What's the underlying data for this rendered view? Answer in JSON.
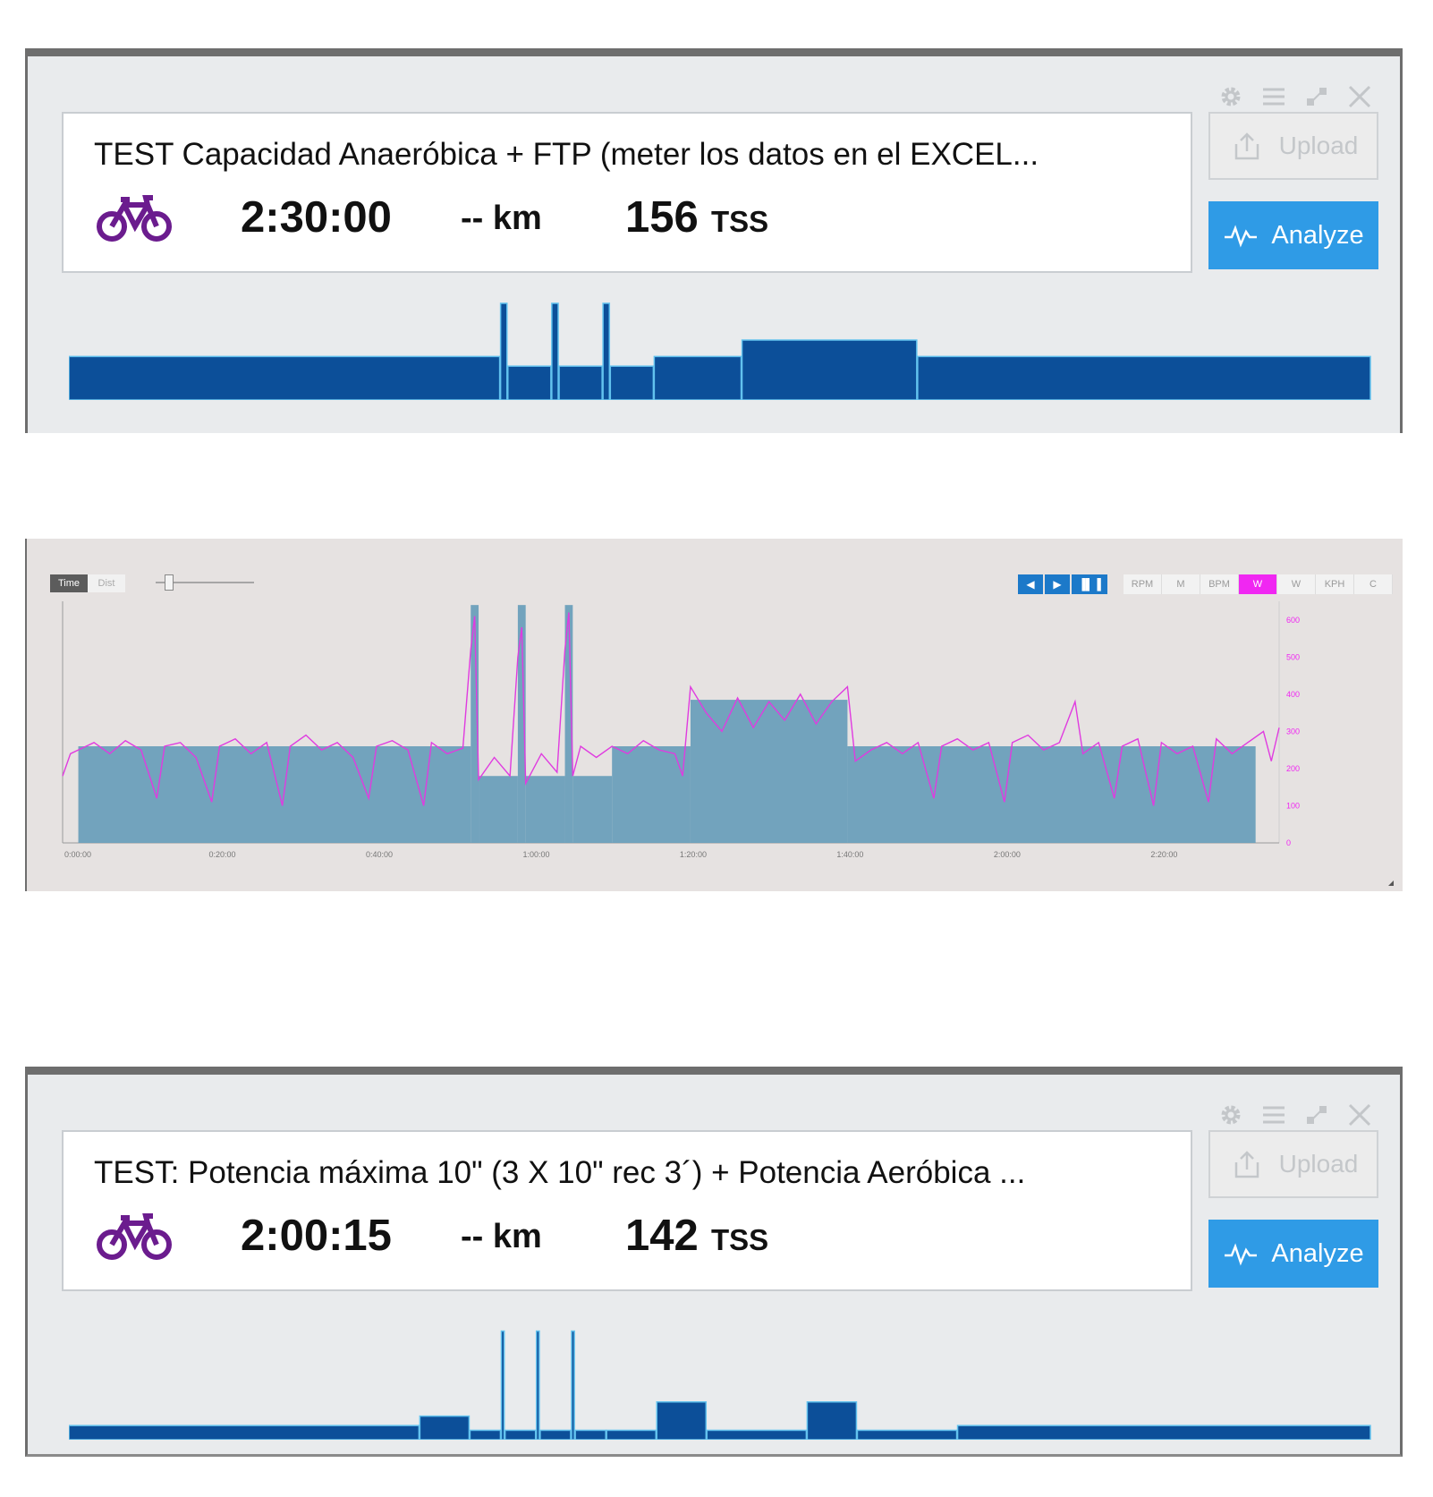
{
  "card1": {
    "title": "TEST Capacidad Anaeróbica + FTP (meter los datos en el EXCEL...",
    "sport_icon": "bike-icon",
    "duration": "2:30:00",
    "distance": "-- km",
    "tss_value": "156",
    "tss_unit": "TSS",
    "upload_label": "Upload",
    "analyze_label": "Analyze",
    "toolbar_icons": [
      "gear-icon",
      "menu-icon",
      "expand-icon",
      "close-icon"
    ],
    "profile": [
      {
        "dur": 29.5,
        "lvl": 0.45
      },
      {
        "dur": 0.5,
        "lvl": 1.0
      },
      {
        "dur": 3.0,
        "lvl": 0.35
      },
      {
        "dur": 0.5,
        "lvl": 1.0
      },
      {
        "dur": 3.0,
        "lvl": 0.35
      },
      {
        "dur": 0.5,
        "lvl": 1.0
      },
      {
        "dur": 3.0,
        "lvl": 0.35
      },
      {
        "dur": 6.0,
        "lvl": 0.45
      },
      {
        "dur": 12.0,
        "lvl": 0.62
      },
      {
        "dur": 31.0,
        "lvl": 0.45
      }
    ]
  },
  "analysis": {
    "toggle": [
      "Time",
      "Dist"
    ],
    "nav_icons": [
      "arrow-left-icon",
      "arrow-right-icon",
      "bars-icon"
    ],
    "channels": [
      "RPM",
      "M",
      "BPM",
      "W",
      "W",
      "KPH",
      "C"
    ],
    "active_channel": 3,
    "colors": {
      "bar": "#6b9fba",
      "power": "#e03be0",
      "accent": "#f027f2",
      "nav": "#1c79c9"
    },
    "chart_data": {
      "type": "area",
      "x_unit": "elapsed time (h:mm:ss)",
      "x_ticks": [
        "0:00:00",
        "0:20:00",
        "0:40:00",
        "1:00:00",
        "1:20:00",
        "1:40:00",
        "2:00:00",
        "2:20:00"
      ],
      "y_ticks": [
        "0",
        "100",
        "200",
        "300",
        "400",
        "500",
        "600"
      ],
      "ylim": [
        0,
        650
      ],
      "xlim_min": [
        0,
        155
      ],
      "planned_intervals": [
        {
          "start_min": 2,
          "end_min": 52,
          "watts": 260
        },
        {
          "start_min": 52,
          "end_min": 53,
          "watts": 640
        },
        {
          "start_min": 53,
          "end_min": 58,
          "watts": 180
        },
        {
          "start_min": 58,
          "end_min": 59,
          "watts": 640
        },
        {
          "start_min": 59,
          "end_min": 64,
          "watts": 180
        },
        {
          "start_min": 64,
          "end_min": 65,
          "watts": 640
        },
        {
          "start_min": 65,
          "end_min": 70,
          "watts": 180
        },
        {
          "start_min": 70,
          "end_min": 80,
          "watts": 260
        },
        {
          "start_min": 80,
          "end_min": 100,
          "watts": 385
        },
        {
          "start_min": 100,
          "end_min": 152,
          "watts": 260
        }
      ],
      "power_series": {
        "name": "W",
        "points": [
          [
            0,
            180
          ],
          [
            1,
            240
          ],
          [
            2,
            250
          ],
          [
            4,
            270
          ],
          [
            6,
            240
          ],
          [
            8,
            275
          ],
          [
            10,
            250
          ],
          [
            12,
            120
          ],
          [
            13,
            260
          ],
          [
            15,
            270
          ],
          [
            17,
            230
          ],
          [
            19,
            110
          ],
          [
            20,
            260
          ],
          [
            22,
            280
          ],
          [
            24,
            240
          ],
          [
            26,
            270
          ],
          [
            28,
            100
          ],
          [
            29,
            260
          ],
          [
            31,
            290
          ],
          [
            33,
            250
          ],
          [
            35,
            270
          ],
          [
            37,
            230
          ],
          [
            39,
            120
          ],
          [
            40,
            260
          ],
          [
            42,
            275
          ],
          [
            44,
            250
          ],
          [
            46,
            100
          ],
          [
            47,
            270
          ],
          [
            49,
            240
          ],
          [
            51,
            255
          ],
          [
            52,
            520
          ],
          [
            52.5,
            610
          ],
          [
            53,
            170
          ],
          [
            55,
            230
          ],
          [
            57,
            180
          ],
          [
            58,
            500
          ],
          [
            58.5,
            580
          ],
          [
            59,
            160
          ],
          [
            61,
            240
          ],
          [
            63,
            190
          ],
          [
            64,
            520
          ],
          [
            64.5,
            620
          ],
          [
            65,
            180
          ],
          [
            66,
            260
          ],
          [
            68,
            230
          ],
          [
            70,
            260
          ],
          [
            72,
            240
          ],
          [
            74,
            275
          ],
          [
            76,
            250
          ],
          [
            78,
            240
          ],
          [
            79,
            180
          ],
          [
            80,
            420
          ],
          [
            82,
            350
          ],
          [
            84,
            300
          ],
          [
            86,
            390
          ],
          [
            88,
            310
          ],
          [
            90,
            380
          ],
          [
            92,
            330
          ],
          [
            94,
            400
          ],
          [
            96,
            320
          ],
          [
            98,
            380
          ],
          [
            100,
            420
          ],
          [
            101,
            220
          ],
          [
            103,
            250
          ],
          [
            105,
            270
          ],
          [
            107,
            240
          ],
          [
            109,
            270
          ],
          [
            111,
            120
          ],
          [
            112,
            260
          ],
          [
            114,
            280
          ],
          [
            116,
            250
          ],
          [
            118,
            270
          ],
          [
            120,
            110
          ],
          [
            121,
            270
          ],
          [
            123,
            290
          ],
          [
            125,
            250
          ],
          [
            127,
            270
          ],
          [
            129,
            380
          ],
          [
            130,
            240
          ],
          [
            132,
            270
          ],
          [
            134,
            120
          ],
          [
            135,
            260
          ],
          [
            137,
            280
          ],
          [
            139,
            100
          ],
          [
            140,
            270
          ],
          [
            142,
            240
          ],
          [
            144,
            260
          ],
          [
            146,
            110
          ],
          [
            147,
            280
          ],
          [
            149,
            240
          ],
          [
            151,
            270
          ],
          [
            153,
            300
          ],
          [
            154,
            220
          ],
          [
            155,
            310
          ]
        ]
      }
    }
  },
  "card2": {
    "title": "TEST:  Potencia máxima 10\" (3 X 10\" rec 3´)  + Potencia Aeróbica ...",
    "sport_icon": "bike-icon",
    "duration": "2:00:15",
    "distance": "-- km",
    "tss_value": "142",
    "tss_unit": "TSS",
    "upload_label": "Upload",
    "analyze_label": "Analyze",
    "toolbar_icons": [
      "gear-icon",
      "menu-icon",
      "expand-icon",
      "close-icon"
    ],
    "profile": [
      {
        "dur": 28,
        "lvl": 0.12
      },
      {
        "dur": 4,
        "lvl": 0.2
      },
      {
        "dur": 2.5,
        "lvl": 0.08
      },
      {
        "dur": 0.3,
        "lvl": 0.92
      },
      {
        "dur": 2.5,
        "lvl": 0.08
      },
      {
        "dur": 0.3,
        "lvl": 0.92
      },
      {
        "dur": 2.5,
        "lvl": 0.08
      },
      {
        "dur": 0.3,
        "lvl": 0.92
      },
      {
        "dur": 2.5,
        "lvl": 0.08
      },
      {
        "dur": 4,
        "lvl": 0.08
      },
      {
        "dur": 4,
        "lvl": 0.32
      },
      {
        "dur": 8,
        "lvl": 0.08
      },
      {
        "dur": 4,
        "lvl": 0.32
      },
      {
        "dur": 8,
        "lvl": 0.08
      },
      {
        "dur": 33,
        "lvl": 0.12
      }
    ]
  }
}
